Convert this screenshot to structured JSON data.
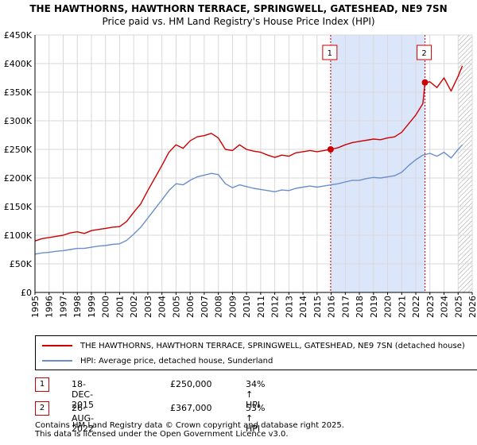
{
  "chart_data": {
    "type": "line",
    "title": "THE HAWTHORNS, HAWTHORN TERRACE, SPRINGWELL, GATESHEAD, NE9 7SN",
    "subtitle": "Price paid vs. HM Land Registry's House Price Index (HPI)",
    "xlim": [
      1995,
      2026
    ],
    "ylim": [
      0,
      450000
    ],
    "x_ticks": [
      1995,
      1996,
      1997,
      1998,
      1999,
      2000,
      2001,
      2002,
      2003,
      2004,
      2005,
      2006,
      2007,
      2008,
      2009,
      2010,
      2011,
      2012,
      2013,
      2014,
      2015,
      2016,
      2017,
      2018,
      2019,
      2020,
      2021,
      2022,
      2023,
      2024,
      2025,
      2026
    ],
    "y_ticks": [
      {
        "value": 0,
        "label": "£0"
      },
      {
        "value": 50000,
        "label": "£50K"
      },
      {
        "value": 100000,
        "label": "£100K"
      },
      {
        "value": 150000,
        "label": "£150K"
      },
      {
        "value": 200000,
        "label": "£200K"
      },
      {
        "value": 250000,
        "label": "£250K"
      },
      {
        "value": 300000,
        "label": "£300K"
      },
      {
        "value": 350000,
        "label": "£350K"
      },
      {
        "value": 400000,
        "label": "£400K"
      },
      {
        "value": 450000,
        "label": "£450K"
      }
    ],
    "grid": true,
    "shaded_region": {
      "x_start": 2015.96,
      "x_end": 2022.65,
      "color": "#dce6fa"
    },
    "hatched_region_start": 2025.0,
    "series": [
      {
        "name": "THE HAWTHORNS, HAWTHORN TERRACE, SPRINGWELL, GATESHEAD, NE9 7SN (detached house)",
        "color": "#cc0000",
        "x": [
          1995.0,
          1995.5,
          1996.0,
          1996.5,
          1997.0,
          1997.5,
          1998.0,
          1998.5,
          1999.0,
          1999.5,
          2000.0,
          2000.5,
          2001.0,
          2001.5,
          2002.0,
          2002.5,
          2003.0,
          2003.5,
          2004.0,
          2004.5,
          2005.0,
          2005.5,
          2006.0,
          2006.5,
          2007.0,
          2007.5,
          2008.0,
          2008.5,
          2009.0,
          2009.5,
          2010.0,
          2010.5,
          2011.0,
          2011.5,
          2012.0,
          2012.5,
          2013.0,
          2013.5,
          2014.0,
          2014.5,
          2015.0,
          2015.5,
          2015.96,
          2016.5,
          2017.0,
          2017.5,
          2018.0,
          2018.5,
          2019.0,
          2019.5,
          2020.0,
          2020.5,
          2021.0,
          2021.5,
          2022.0,
          2022.5,
          2022.65,
          2023.0,
          2023.5,
          2024.0,
          2024.5,
          2025.0,
          2025.3
        ],
        "values": [
          90000,
          94000,
          96000,
          98000,
          100000,
          104000,
          106000,
          103000,
          108000,
          110000,
          112000,
          114000,
          115000,
          124000,
          140000,
          155000,
          178000,
          200000,
          222000,
          245000,
          258000,
          252000,
          265000,
          272000,
          274000,
          278000,
          270000,
          250000,
          248000,
          258000,
          250000,
          247000,
          245000,
          240000,
          236000,
          240000,
          238000,
          244000,
          246000,
          248000,
          246000,
          248000,
          250000,
          253000,
          258000,
          262000,
          264000,
          266000,
          268000,
          267000,
          270000,
          272000,
          280000,
          295000,
          310000,
          330000,
          367000,
          368000,
          358000,
          375000,
          352000,
          378000,
          396000
        ]
      },
      {
        "name": "HPI: Average price, detached house, Sunderland",
        "color": "#6a8fc8",
        "x": [
          1995.0,
          1995.5,
          1996.0,
          1996.5,
          1997.0,
          1997.5,
          1998.0,
          1998.5,
          1999.0,
          1999.5,
          2000.0,
          2000.5,
          2001.0,
          2001.5,
          2002.0,
          2002.5,
          2003.0,
          2003.5,
          2004.0,
          2004.5,
          2005.0,
          2005.5,
          2006.0,
          2006.5,
          2007.0,
          2007.5,
          2008.0,
          2008.5,
          2009.0,
          2009.5,
          2010.0,
          2010.5,
          2011.0,
          2011.5,
          2012.0,
          2012.5,
          2013.0,
          2013.5,
          2014.0,
          2014.5,
          2015.0,
          2015.5,
          2016.0,
          2016.5,
          2017.0,
          2017.5,
          2018.0,
          2018.5,
          2019.0,
          2019.5,
          2020.0,
          2020.5,
          2021.0,
          2021.5,
          2022.0,
          2022.5,
          2023.0,
          2023.5,
          2024.0,
          2024.5,
          2025.0,
          2025.3
        ],
        "values": [
          67000,
          69000,
          70000,
          72000,
          73000,
          75000,
          77000,
          77000,
          79000,
          81000,
          82000,
          84000,
          85000,
          91000,
          102000,
          114000,
          130000,
          146000,
          162000,
          178000,
          190000,
          188000,
          196000,
          202000,
          205000,
          208000,
          206000,
          190000,
          183000,
          188000,
          185000,
          182000,
          180000,
          178000,
          176000,
          179000,
          178000,
          182000,
          184000,
          186000,
          184000,
          186000,
          188000,
          190000,
          193000,
          196000,
          196000,
          199000,
          201000,
          200000,
          202000,
          204000,
          210000,
          222000,
          232000,
          240000,
          243000,
          238000,
          245000,
          235000,
          250000,
          258000
        ]
      }
    ],
    "sales": [
      {
        "marker": "1",
        "x": 2015.96,
        "value": 250000
      },
      {
        "marker": "2",
        "x": 2022.65,
        "value": 367000
      }
    ]
  },
  "legend": {
    "entries": [
      {
        "label": "THE HAWTHORNS, HAWTHORN TERRACE, SPRINGWELL, GATESHEAD, NE9 7SN (detached house)",
        "color": "#cc0000"
      },
      {
        "label": "HPI: Average price, detached house, Sunderland",
        "color": "#6a8fc8"
      }
    ]
  },
  "sales_table": [
    {
      "marker": "1",
      "date": "18-DEC-2015",
      "price": "£250,000",
      "hpi": "34% ↑ HPI"
    },
    {
      "marker": "2",
      "date": "26-AUG-2022",
      "price": "£367,000",
      "hpi": "53% ↑ HPI"
    }
  ],
  "footer": {
    "line1": "Contains HM Land Registry data © Crown copyright and database right 2025.",
    "line2": "This data is licensed under the Open Government Licence v3.0."
  }
}
